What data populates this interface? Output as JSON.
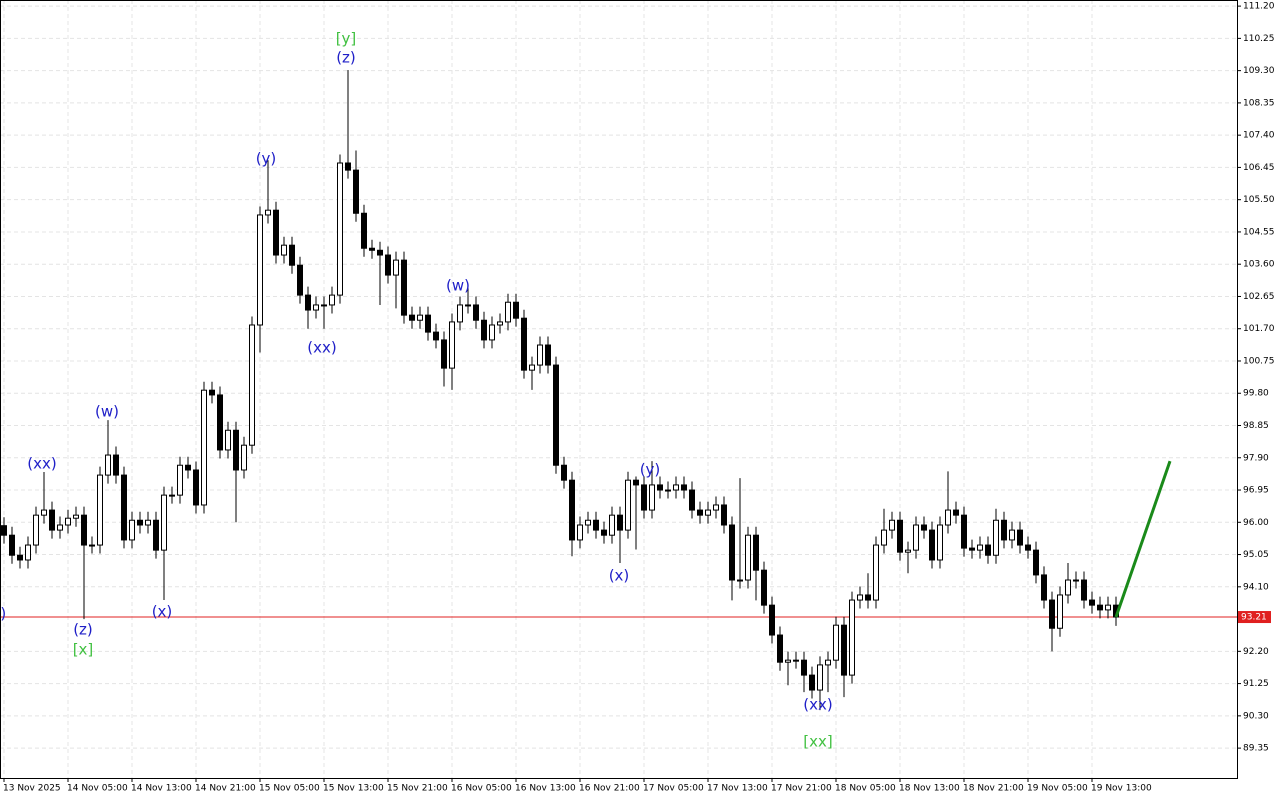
{
  "chart_data": {
    "type": "candlestick",
    "categories": [
      "13 Nov 2025",
      null,
      null,
      null,
      null,
      null,
      null,
      null,
      "14 Nov 05:00",
      null,
      null,
      null,
      null,
      null,
      null,
      null,
      "14 Nov 13:00",
      null,
      null,
      null,
      null,
      null,
      null,
      null,
      "14 Nov 21:00",
      null,
      null,
      null,
      null,
      null,
      null,
      null,
      "15 Nov 05:00",
      null,
      null,
      null,
      null,
      null,
      null,
      null,
      "15 Nov 13:00",
      null,
      null,
      null,
      null,
      null,
      null,
      null,
      "15 Nov 21:00",
      null,
      null,
      null,
      null,
      null,
      null,
      null,
      "16 Nov 05:00",
      null,
      null,
      null,
      null,
      null,
      null,
      null,
      "16 Nov 13:00",
      null,
      null,
      null,
      null,
      null,
      null,
      null,
      "16 Nov 21:00",
      null,
      null,
      null,
      null,
      null,
      null,
      null,
      "17 Nov 05:00",
      null,
      null,
      null,
      null,
      null,
      null,
      null,
      "17 Nov 13:00",
      null,
      null,
      null,
      null,
      null,
      null,
      null,
      "17 Nov 21:00",
      null,
      null,
      null,
      null,
      null,
      null,
      null,
      "18 Nov 05:00",
      null,
      null,
      null,
      null,
      null,
      null,
      null,
      "18 Nov 13:00",
      null,
      null,
      null,
      null,
      null,
      null,
      null,
      "18 Nov 21:00",
      null,
      null,
      null,
      null,
      null,
      null,
      null,
      "19 Nov 05:00",
      null,
      null,
      null,
      null,
      null,
      null,
      null,
      "19 Nov 13:00",
      null,
      null,
      null
    ],
    "open": [
      95.9,
      95.62,
      95.03,
      94.89,
      95.33,
      96.21,
      96.36,
      95.77,
      95.92,
      96.12,
      96.21,
      95.33,
      95.33,
      97.39,
      97.98,
      97.39,
      95.48,
      96.06,
      95.92,
      96.06,
      95.18,
      96.8,
      96.8,
      97.68,
      97.54,
      96.51,
      99.89,
      99.75,
      98.13,
      98.71,
      97.54,
      98.27,
      101.81,
      105.05,
      105.19,
      103.87,
      104.16,
      103.57,
      102.69,
      102.25,
      102.4,
      102.4,
      102.69,
      106.58,
      106.37,
      105.1,
      104.07,
      104.01,
      103.87,
      103.28,
      103.72,
      102.1,
      101.95,
      102.1,
      101.6,
      101.37,
      100.54,
      101.9,
      102.4,
      102.4,
      101.95,
      101.37,
      101.81,
      101.9,
      102.48,
      102.01,
      100.48,
      100.63,
      101.22,
      100.63,
      97.68,
      97.24,
      95.48,
      95.92,
      96.06,
      95.77,
      95.62,
      96.21,
      95.77,
      97.24,
      97.1,
      96.36,
      97.1,
      96.95,
      96.95,
      97.1,
      96.95,
      96.36,
      96.21,
      96.36,
      96.51,
      95.92,
      94.3,
      94.3,
      95.62,
      94.59,
      93.56,
      92.68,
      91.88,
      91.94,
      91.94,
      91.5,
      91.06,
      91.8,
      91.94,
      92.97,
      91.5,
      93.71,
      93.86,
      93.71,
      95.33,
      95.77,
      96.06,
      95.12,
      95.18,
      95.92,
      95.77,
      94.89,
      95.92,
      96.36,
      96.21,
      95.24,
      95.18,
      95.33,
      95.03,
      96.06,
      95.48,
      95.77,
      95.33,
      95.18,
      94.45,
      93.71,
      92.88,
      93.86,
      94.3,
      94.3,
      93.71,
      93.56,
      93.42,
      93.56
    ],
    "high": [
      96.15,
      95.87,
      95.28,
      95.58,
      96.46,
      97.48,
      96.61,
      96.17,
      96.37,
      96.46,
      96.46,
      95.58,
      97.64,
      99.01,
      98.23,
      97.64,
      96.31,
      96.31,
      96.31,
      96.31,
      97.05,
      97.05,
      97.93,
      97.93,
      97.79,
      100.14,
      100.14,
      100.0,
      98.96,
      98.96,
      98.52,
      102.06,
      105.3,
      106.66,
      105.44,
      104.41,
      104.41,
      103.82,
      102.94,
      102.65,
      102.65,
      102.94,
      106.83,
      109.32,
      106.95,
      105.35,
      104.32,
      104.26,
      104.12,
      103.97,
      103.97,
      102.35,
      102.35,
      102.35,
      101.85,
      101.62,
      102.15,
      102.65,
      102.95,
      102.65,
      102.2,
      102.06,
      102.15,
      102.73,
      102.73,
      102.26,
      100.88,
      101.47,
      101.47,
      100.88,
      97.93,
      97.49,
      96.17,
      96.31,
      96.31,
      96.02,
      96.46,
      96.46,
      97.49,
      97.35,
      97.35,
      97.8,
      97.35,
      97.2,
      97.35,
      97.35,
      97.2,
      96.61,
      96.61,
      96.76,
      96.76,
      96.17,
      97.3,
      95.87,
      95.87,
      94.84,
      93.81,
      92.93,
      92.19,
      92.19,
      92.19,
      91.75,
      92.05,
      92.19,
      93.22,
      93.22,
      93.96,
      94.11,
      94.5,
      95.58,
      96.4,
      96.31,
      96.31,
      95.43,
      96.17,
      96.17,
      96.02,
      96.17,
      97.5,
      96.61,
      96.46,
      95.49,
      95.58,
      95.58,
      96.4,
      96.31,
      96.02,
      96.02,
      95.58,
      95.43,
      94.7,
      93.96,
      94.11,
      94.8,
      94.55,
      94.55,
      93.96,
      93.81,
      93.81,
      93.81
    ],
    "low": [
      95.37,
      94.78,
      94.64,
      94.64,
      95.08,
      95.96,
      95.52,
      95.52,
      95.67,
      95.87,
      93.15,
      95.08,
      95.08,
      97.14,
      97.14,
      95.23,
      95.23,
      95.67,
      95.67,
      94.93,
      93.71,
      96.55,
      96.55,
      97.29,
      96.26,
      96.26,
      99.5,
      97.88,
      97.88,
      96.0,
      97.29,
      98.02,
      101.0,
      104.8,
      103.62,
      103.62,
      103.32,
      102.44,
      101.7,
      102.0,
      101.7,
      102.15,
      102.44,
      106.12,
      104.85,
      103.82,
      103.76,
      102.4,
      103.03,
      102.3,
      101.85,
      101.7,
      101.7,
      101.35,
      101.12,
      100.0,
      99.9,
      101.65,
      102.15,
      101.7,
      101.12,
      101.12,
      101.56,
      101.65,
      101.76,
      100.23,
      99.9,
      100.38,
      100.38,
      97.43,
      96.99,
      95.0,
      95.23,
      95.67,
      95.52,
      95.37,
      95.37,
      94.8,
      95.52,
      95.2,
      96.11,
      96.11,
      96.7,
      96.7,
      96.7,
      96.7,
      96.11,
      95.96,
      95.96,
      96.11,
      95.67,
      93.7,
      94.05,
      94.05,
      93.7,
      93.31,
      92.43,
      91.63,
      91.2,
      91.69,
      91.0,
      90.81,
      90.47,
      91.0,
      91.69,
      90.85,
      91.25,
      93.46,
      93.46,
      93.46,
      95.08,
      95.52,
      94.87,
      94.5,
      94.93,
      95.52,
      94.64,
      94.64,
      95.67,
      95.96,
      94.99,
      94.93,
      94.93,
      94.78,
      94.78,
      95.23,
      95.23,
      95.08,
      94.93,
      94.2,
      93.46,
      92.2,
      92.63,
      93.61,
      94.05,
      93.46,
      93.31,
      93.17,
      93.17,
      92.95
    ],
    "close": [
      95.62,
      95.03,
      94.89,
      95.33,
      96.21,
      96.36,
      95.77,
      95.92,
      96.12,
      96.21,
      95.33,
      95.33,
      97.39,
      97.98,
      97.39,
      95.48,
      96.06,
      95.92,
      96.06,
      95.18,
      96.8,
      96.8,
      97.68,
      97.54,
      96.51,
      99.89,
      99.75,
      98.13,
      98.71,
      97.54,
      98.27,
      101.81,
      105.05,
      105.19,
      103.87,
      104.16,
      103.57,
      102.69,
      102.25,
      102.4,
      102.4,
      102.69,
      106.58,
      106.37,
      105.1,
      104.07,
      104.01,
      103.87,
      103.28,
      103.72,
      102.1,
      101.95,
      102.1,
      101.6,
      101.37,
      100.54,
      101.9,
      102.4,
      102.4,
      101.95,
      101.37,
      101.81,
      101.9,
      102.48,
      102.01,
      100.48,
      100.63,
      101.22,
      100.63,
      97.68,
      97.24,
      95.48,
      95.92,
      96.06,
      95.77,
      95.62,
      96.21,
      95.77,
      97.24,
      97.1,
      96.36,
      97.1,
      96.95,
      96.95,
      97.1,
      96.95,
      96.36,
      96.21,
      96.36,
      96.51,
      95.92,
      94.3,
      94.3,
      95.62,
      94.59,
      93.56,
      92.68,
      91.88,
      91.94,
      91.94,
      91.5,
      91.06,
      91.8,
      91.94,
      92.97,
      91.5,
      93.71,
      93.86,
      93.71,
      95.33,
      95.77,
      96.06,
      95.12,
      95.18,
      95.92,
      95.77,
      94.89,
      95.92,
      96.36,
      96.21,
      95.24,
      95.18,
      95.33,
      95.03,
      96.06,
      95.48,
      95.77,
      95.33,
      95.18,
      94.45,
      93.71,
      92.88,
      93.86,
      94.3,
      94.3,
      93.71,
      93.56,
      93.42,
      93.56,
      93.21
    ],
    "up_color": "#ffffff",
    "down_color": "#000000",
    "ylim": [
      88.47,
      111.38
    ],
    "yticks": [
      {
        "value": 111.2,
        "label": "111.20"
      },
      110.25,
      {
        "value": 109.3,
        "label": "109.30"
      },
      108.35,
      {
        "value": 107.4,
        "label": "107.40"
      },
      106.45,
      {
        "value": 105.5,
        "label": "105.50"
      },
      104.55,
      {
        "value": 103.6,
        "label": "103.60"
      },
      102.65,
      {
        "value": 101.7,
        "label": "101.70"
      },
      100.75,
      {
        "value": 99.8,
        "label": "99.80"
      },
      98.85,
      {
        "value": 97.9,
        "label": "97.90"
      },
      96.95,
      {
        "value": 96.0,
        "label": "96.00"
      },
      95.05,
      {
        "value": 94.1,
        "label": "94.10"
      },
      {
        "value": 92.2,
        "label": "92.20"
      },
      91.25,
      {
        "value": 90.3,
        "label": "90.30"
      },
      89.35
    ],
    "grid": true,
    "current_price": 93.21,
    "current_price_color": "#e02020",
    "forecast": {
      "color": "#1a8a1a",
      "values": [
        93.21,
        97.8
      ]
    },
    "annotations": [
      {
        "text": "(y)",
        "color": "#2020c8"
      },
      {
        "text": "(xx)",
        "color": "#2020c8"
      },
      {
        "text": "(w)",
        "color": "#2020c8"
      },
      {
        "text": "(z)",
        "color": "#2020c8"
      },
      {
        "text": "[x]",
        "color": "#40c040"
      },
      {
        "text": "(x)",
        "color": "#2020c8"
      },
      {
        "text": "(y)",
        "color": "#2020c8"
      },
      {
        "text": "(xx)",
        "color": "#2020c8"
      },
      {
        "text": "[y]",
        "color": "#40c040"
      },
      {
        "text": "(z)",
        "color": "#2020c8"
      },
      {
        "text": "(w)",
        "color": "#2020c8"
      },
      {
        "text": "(y)",
        "color": "#2020c8"
      },
      {
        "text": "(x)",
        "color": "#2020c8"
      },
      {
        "text": "(xx)",
        "color": "#2020c8"
      },
      {
        "text": "[xx]",
        "color": "#40c040"
      }
    ]
  }
}
